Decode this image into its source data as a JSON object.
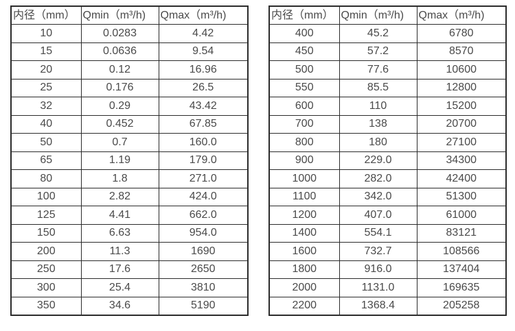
{
  "colors": {
    "background": "#ffffff",
    "border": "#2b2b2b",
    "text": "#4a4a4a"
  },
  "headers": [
    "内径（mm）",
    "Qmin（m³/h)",
    "Qmax（m³/h)"
  ],
  "left_table": {
    "rows": [
      [
        "10",
        "0.0283",
        "4.42"
      ],
      [
        "15",
        "0.0636",
        "9.54"
      ],
      [
        "20",
        "0.12",
        "16.96"
      ],
      [
        "25",
        "0.176",
        "26.5"
      ],
      [
        "32",
        "0.29",
        "43.42"
      ],
      [
        "40",
        "0.452",
        "67.85"
      ],
      [
        "50",
        "0.7",
        "160.0"
      ],
      [
        "65",
        "1.19",
        "179.0"
      ],
      [
        "80",
        "1.8",
        "271.0"
      ],
      [
        "100",
        "2.82",
        "424.0"
      ],
      [
        "125",
        "4.41",
        "662.0"
      ],
      [
        "150",
        "6.63",
        "954.0"
      ],
      [
        "200",
        "11.3",
        "1690"
      ],
      [
        "250",
        "17.6",
        "2650"
      ],
      [
        "300",
        "25.4",
        "3810"
      ],
      [
        "350",
        "34.6",
        "5190"
      ]
    ]
  },
  "right_table": {
    "rows": [
      [
        "400",
        "45.2",
        "6780"
      ],
      [
        "450",
        "57.2",
        "8570"
      ],
      [
        "500",
        "77.6",
        "10600"
      ],
      [
        "550",
        "85.5",
        "12800"
      ],
      [
        "600",
        "110",
        "15200"
      ],
      [
        "700",
        "138",
        "20700"
      ],
      [
        "800",
        "180",
        "27100"
      ],
      [
        "900",
        "229.0",
        "34300"
      ],
      [
        "1000",
        "282.0",
        "42400"
      ],
      [
        "1100",
        "342.0",
        "51300"
      ],
      [
        "1200",
        "407.0",
        "61000"
      ],
      [
        "1400",
        "554.1",
        "83121"
      ],
      [
        "1600",
        "732.7",
        "108566"
      ],
      [
        "1800",
        "916.0",
        "137404"
      ],
      [
        "2000",
        "1131.0",
        "169635"
      ],
      [
        "2200",
        "1368.4",
        "205258"
      ]
    ]
  }
}
